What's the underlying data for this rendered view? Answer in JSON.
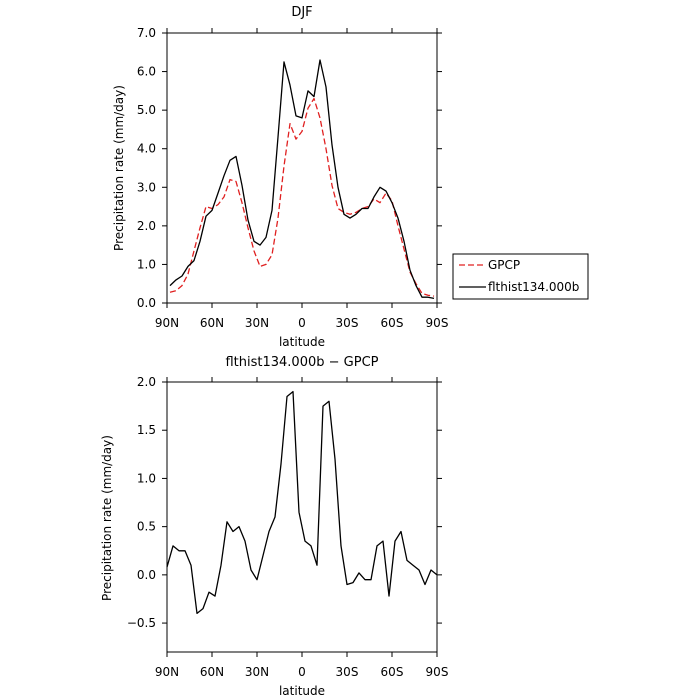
{
  "chart_data": [
    {
      "type": "line",
      "title": "DJF",
      "xlabel": "latitude",
      "ylabel": "Precipitation rate  (mm/day)",
      "xlim": [
        90,
        -90
      ],
      "ylim": [
        0,
        7
      ],
      "x_tick_labels": [
        "90N",
        "60N",
        "30N",
        "0",
        "30S",
        "60S",
        "90S"
      ],
      "y_tick_labels": [
        "0.0",
        "1.0",
        "2.0",
        "3.0",
        "4.0",
        "5.0",
        "6.0",
        "7.0"
      ],
      "legend": {
        "placement": "right",
        "entries": [
          "GPCP",
          "flthist134.000b"
        ]
      },
      "series": [
        {
          "name": "GPCP",
          "color": "#e02020",
          "dash": "dashed",
          "x": [
            88,
            84,
            80,
            76,
            72,
            68,
            64,
            60,
            56,
            52,
            48,
            44,
            40,
            36,
            32,
            28,
            24,
            20,
            16,
            12,
            8,
            4,
            0,
            -4,
            -8,
            -12,
            -16,
            -20,
            -24,
            -28,
            -32,
            -36,
            -40,
            -44,
            -48,
            -52,
            -56,
            -60,
            -64,
            -68,
            -72,
            -76,
            -80,
            -84,
            -88
          ],
          "values": [
            0.28,
            0.32,
            0.45,
            0.75,
            1.35,
            1.95,
            2.5,
            2.45,
            2.55,
            2.75,
            3.2,
            3.15,
            2.6,
            1.95,
            1.35,
            0.95,
            1.0,
            1.25,
            2.2,
            3.55,
            4.65,
            4.25,
            4.45,
            5.05,
            5.3,
            4.8,
            4.0,
            3.05,
            2.45,
            2.35,
            2.3,
            2.35,
            2.45,
            2.5,
            2.7,
            2.6,
            2.85,
            2.65,
            2.0,
            1.4,
            0.8,
            0.5,
            0.25,
            0.2,
            0.18
          ]
        },
        {
          "name": "flthist134.000b",
          "color": "#000000",
          "dash": "solid",
          "x": [
            88,
            84,
            80,
            76,
            72,
            68,
            64,
            60,
            56,
            52,
            48,
            44,
            40,
            36,
            32,
            28,
            24,
            20,
            16,
            12,
            8,
            4,
            0,
            -4,
            -8,
            -12,
            -16,
            -20,
            -24,
            -28,
            -32,
            -36,
            -40,
            -44,
            -48,
            -52,
            -56,
            -60,
            -64,
            -68,
            -72,
            -76,
            -80,
            -84,
            -88
          ],
          "values": [
            0.45,
            0.6,
            0.7,
            0.95,
            1.1,
            1.6,
            2.25,
            2.4,
            2.85,
            3.3,
            3.7,
            3.8,
            3.05,
            2.15,
            1.6,
            1.5,
            1.7,
            2.4,
            4.3,
            6.25,
            5.65,
            4.85,
            4.8,
            5.5,
            5.35,
            6.3,
            5.6,
            4.1,
            3.0,
            2.3,
            2.2,
            2.3,
            2.45,
            2.45,
            2.75,
            3.0,
            2.9,
            2.6,
            2.2,
            1.6,
            0.85,
            0.45,
            0.15,
            0.15,
            0.12
          ]
        }
      ]
    },
    {
      "type": "line",
      "title": "flthist134.000b  −  GPCP",
      "xlabel": "latitude",
      "ylabel": "Precipitation rate  (mm/day)",
      "xlim": [
        90,
        -90
      ],
      "ylim": [
        -0.8,
        2.0
      ],
      "x_tick_labels": [
        "90N",
        "60N",
        "30N",
        "0",
        "30S",
        "60S",
        "90S"
      ],
      "y_tick_labels": [
        "−0.5",
        "0.0",
        "0.5",
        "1.0",
        "1.5",
        "2.0"
      ],
      "series": [
        {
          "color": "#000000",
          "dash": "solid",
          "x": [
            90,
            86,
            82,
            78,
            74,
            70,
            66,
            62,
            58,
            54,
            50,
            46,
            42,
            38,
            34,
            30,
            26,
            22,
            18,
            14,
            10,
            6,
            2,
            -2,
            -6,
            -10,
            -14,
            -18,
            -22,
            -26,
            -30,
            -34,
            -38,
            -42,
            -46,
            -50,
            -54,
            -58,
            -62,
            -66,
            -70,
            -74,
            -78,
            -82,
            -86,
            -90
          ],
          "values": [
            0.08,
            0.3,
            0.25,
            0.25,
            0.1,
            -0.4,
            -0.35,
            -0.18,
            -0.22,
            0.1,
            0.55,
            0.45,
            0.5,
            0.35,
            0.05,
            -0.05,
            0.2,
            0.45,
            0.6,
            1.15,
            1.85,
            1.9,
            0.65,
            0.35,
            0.3,
            0.1,
            1.75,
            1.8,
            1.2,
            0.3,
            -0.1,
            -0.08,
            0.02,
            -0.05,
            -0.05,
            0.3,
            0.35,
            -0.22,
            0.35,
            0.45,
            0.15,
            0.1,
            0.05,
            -0.1,
            0.05,
            0.0
          ]
        }
      ]
    }
  ]
}
